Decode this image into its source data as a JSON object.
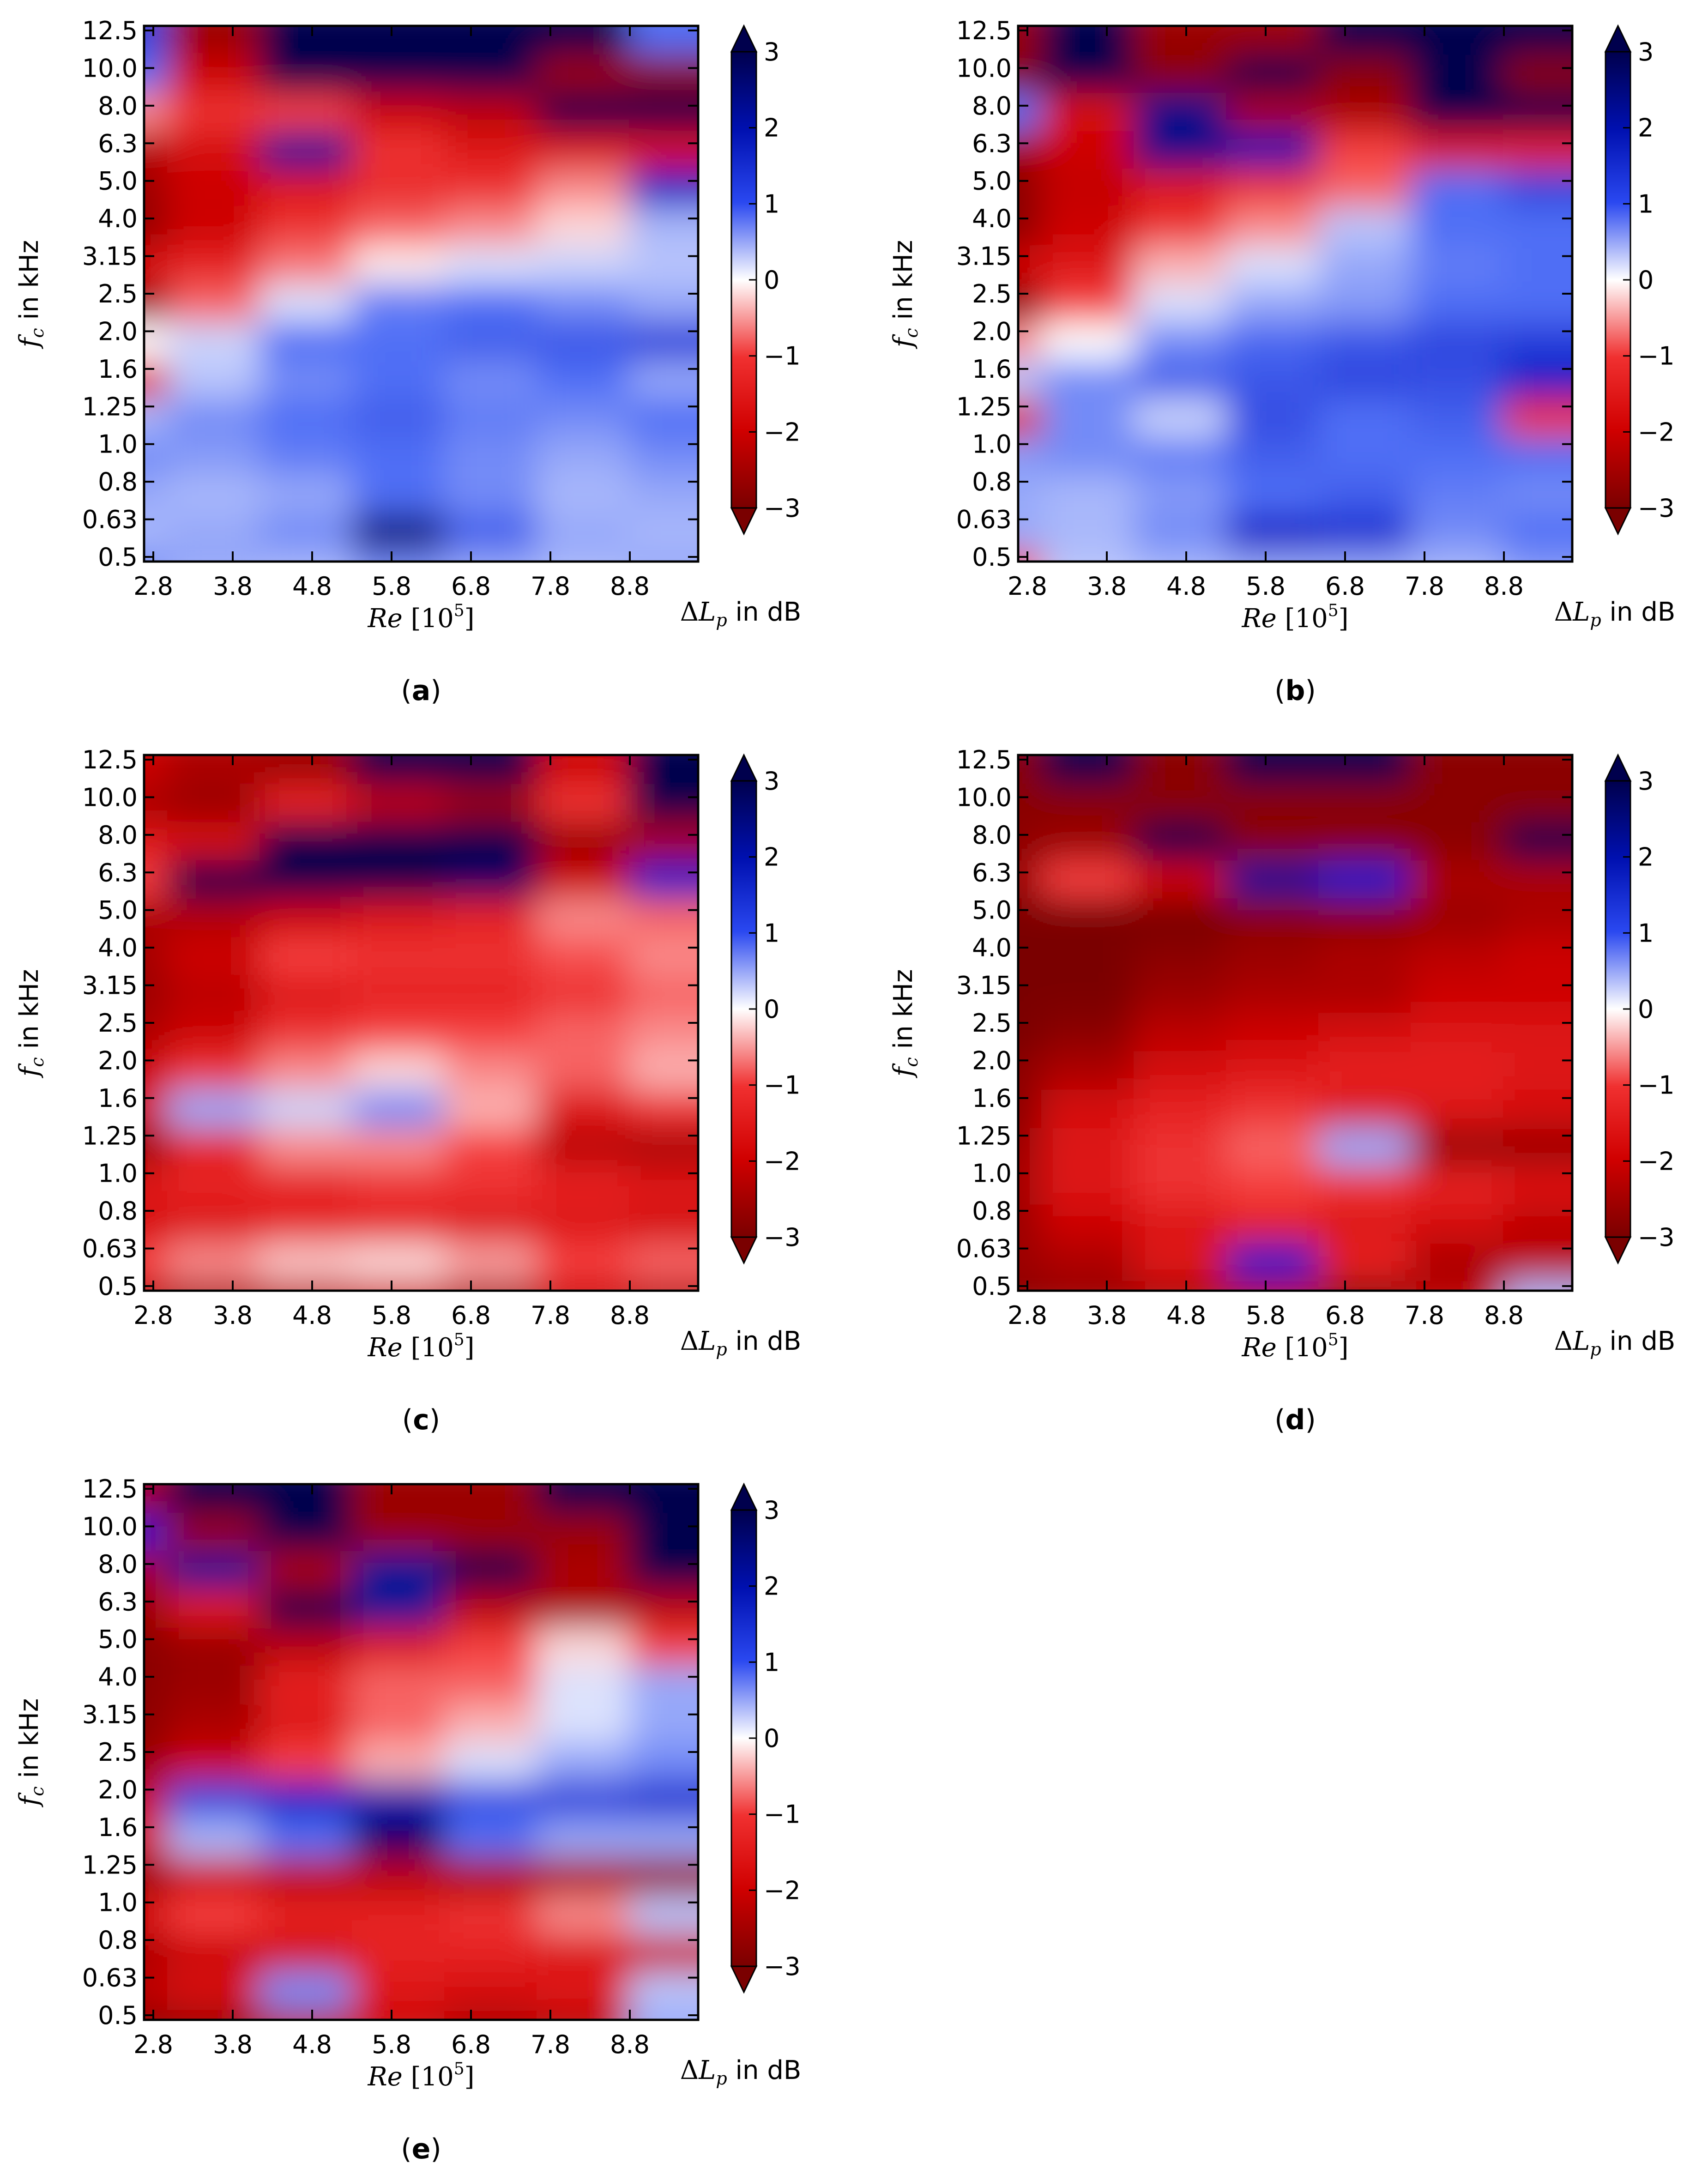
{
  "figure": {
    "colorbar": {
      "ticks": [
        "3",
        "2",
        "1",
        "0",
        "−1",
        "−2",
        "−3"
      ],
      "tick_values": [
        3,
        2,
        1,
        0,
        -1,
        -2,
        -3
      ],
      "label": "ΔL_p in dB",
      "colormap": "seismic_r (blue positive, red negative)",
      "colors": {
        "neg_max": "#7a0000",
        "neg_mid": "#e01010",
        "zero": "#ffffff",
        "pos_mid": "#1030e0",
        "pos_max": "#00004d"
      }
    },
    "xaxis": {
      "label": "Re [10^5]",
      "ticks": [
        "2.8",
        "3.8",
        "4.8",
        "5.8",
        "6.8",
        "7.8",
        "8.8"
      ]
    },
    "yaxis": {
      "label": "f_c in kHz",
      "ticks": [
        "12.5",
        "10.0",
        "8.0",
        "6.3",
        "5.0",
        "4.0",
        "3.15",
        "2.5",
        "2.0",
        "1.6",
        "1.25",
        "1.0",
        "0.8",
        "0.63",
        "0.5"
      ]
    }
  },
  "chart_data": [
    {
      "type": "heatmap",
      "caption": "(a)",
      "x_categories": [
        "2.8",
        "3.8",
        "4.8",
        "5.8",
        "6.8",
        "7.8",
        "8.8"
      ],
      "y_categories_low_to_high": [
        "0.5",
        "0.63",
        "0.8",
        "1.0",
        "1.25",
        "1.6",
        "2.0",
        "2.5",
        "3.15",
        "4.0",
        "5.0",
        "6.3",
        "8.0",
        "10.0",
        "12.5"
      ],
      "zlim": [
        -3,
        3
      ],
      "zlabel": "ΔL_p in dB",
      "values_rows_low_to_high_freq": [
        [
          0.8,
          0.6,
          0.5,
          0.8,
          0.6,
          0.5,
          0.6
        ],
        [
          0.5,
          0.6,
          0.8,
          2.6,
          1.2,
          0.6,
          0.5
        ],
        [
          0.6,
          0.5,
          0.6,
          1.0,
          0.8,
          0.5,
          0.6
        ],
        [
          0.8,
          0.7,
          0.9,
          1.0,
          0.8,
          0.6,
          0.8
        ],
        [
          0.5,
          0.8,
          1.0,
          1.2,
          0.9,
          0.8,
          1.0
        ],
        [
          -1.4,
          0.4,
          0.8,
          1.0,
          0.8,
          1.0,
          0.6
        ],
        [
          0.0,
          0.3,
          1.0,
          1.0,
          1.2,
          1.3,
          1.6
        ],
        [
          -2.6,
          -0.8,
          0.2,
          0.9,
          1.0,
          0.8,
          0.6
        ],
        [
          -1.8,
          -1.4,
          -0.7,
          -0.1,
          0.2,
          0.3,
          0.4
        ],
        [
          -2.7,
          -2.0,
          -1.2,
          -0.8,
          -0.6,
          -0.2,
          0.5
        ],
        [
          -2.6,
          -2.0,
          -1.6,
          -1.3,
          -1.2,
          -0.6,
          2.0
        ],
        [
          -2.3,
          -1.8,
          2.4,
          -1.2,
          -1.6,
          -1.7,
          -1.8
        ],
        [
          -0.6,
          -1.2,
          -1.0,
          -2.0,
          -2.2,
          3.0,
          3.0
        ],
        [
          1.0,
          -2.0,
          3.0,
          3.0,
          3.0,
          -2.6,
          -2.8
        ],
        [
          1.5,
          -2.6,
          3.0,
          3.0,
          3.0,
          3.0,
          1.0
        ]
      ]
    },
    {
      "type": "heatmap",
      "caption": "(b)",
      "x_categories": [
        "2.8",
        "3.8",
        "4.8",
        "5.8",
        "6.8",
        "7.8",
        "8.8"
      ],
      "y_categories_low_to_high": [
        "0.5",
        "0.63",
        "0.8",
        "1.0",
        "1.25",
        "1.6",
        "2.0",
        "2.5",
        "3.15",
        "4.0",
        "5.0",
        "6.3",
        "8.0",
        "10.0",
        "12.5"
      ],
      "zlim": [
        -3,
        3
      ],
      "zlabel": "ΔL_p in dB",
      "values_rows_low_to_high_freq": [
        [
          -1.0,
          0.4,
          0.5,
          0.6,
          0.6,
          0.5,
          0.7
        ],
        [
          0.6,
          0.5,
          0.8,
          2.0,
          1.8,
          0.8,
          1.0
        ],
        [
          0.6,
          0.5,
          0.7,
          1.0,
          1.2,
          0.9,
          0.8
        ],
        [
          0.7,
          0.8,
          0.9,
          1.2,
          1.0,
          1.0,
          1.0
        ],
        [
          -1.5,
          0.8,
          0.3,
          1.4,
          1.0,
          1.2,
          -1.2
        ],
        [
          0.4,
          0.8,
          1.2,
          1.3,
          1.5,
          1.4,
          2.0
        ],
        [
          -0.6,
          0.0,
          0.8,
          1.1,
          1.3,
          1.5,
          1.6
        ],
        [
          -2.8,
          -1.0,
          0.2,
          0.6,
          0.7,
          1.0,
          1.0
        ],
        [
          -2.0,
          -1.6,
          -0.4,
          0.2,
          0.6,
          0.9,
          1.0
        ],
        [
          -2.8,
          -2.0,
          -1.2,
          -0.6,
          0.4,
          1.0,
          1.0
        ],
        [
          -2.8,
          -2.1,
          -1.6,
          -1.2,
          -0.8,
          1.0,
          1.5
        ],
        [
          -2.5,
          -2.0,
          2.5,
          2.2,
          -1.0,
          -1.6,
          -1.5
        ],
        [
          1.0,
          -1.8,
          2.5,
          -2.4,
          -2.4,
          3.0,
          3.0
        ],
        [
          -2.8,
          3.0,
          -2.8,
          3.0,
          -2.8,
          3.0,
          -2.8
        ],
        [
          -2.6,
          3.0,
          -2.6,
          -2.6,
          3.0,
          3.0,
          3.0
        ]
      ]
    },
    {
      "type": "heatmap",
      "caption": "(c)",
      "x_categories": [
        "2.8",
        "3.8",
        "4.8",
        "5.8",
        "6.8",
        "7.8",
        "8.8"
      ],
      "y_categories_low_to_high": [
        "0.5",
        "0.63",
        "0.8",
        "1.0",
        "1.25",
        "1.6",
        "2.0",
        "2.5",
        "3.15",
        "4.0",
        "5.0",
        "6.3",
        "8.0",
        "10.0",
        "12.5"
      ],
      "zlim": [
        -3,
        3
      ],
      "zlabel": "ΔL_p in dB",
      "values_rows_low_to_high_freq": [
        [
          -2.2,
          -2.4,
          -2.2,
          -2.0,
          -2.4,
          -2.0,
          -2.2
        ],
        [
          -1.0,
          -0.6,
          -0.3,
          -0.2,
          -0.5,
          -1.0,
          -0.8
        ],
        [
          -1.8,
          -1.6,
          -1.4,
          -1.4,
          -1.6,
          -1.6,
          -1.8
        ],
        [
          -1.6,
          -1.4,
          -1.4,
          -1.2,
          -1.2,
          -1.4,
          -1.6
        ],
        [
          -2.6,
          -1.4,
          -0.6,
          -0.6,
          -1.0,
          -2.2,
          -2.4
        ],
        [
          -1.8,
          0.6,
          0.3,
          0.8,
          -0.4,
          -1.6,
          -1.2
        ],
        [
          -2.0,
          -1.2,
          -0.6,
          -0.2,
          -0.6,
          -0.8,
          -0.4
        ],
        [
          -2.4,
          -2.0,
          -1.2,
          -1.0,
          -1.0,
          -0.8,
          -0.6
        ],
        [
          -2.6,
          -2.2,
          -1.6,
          -1.4,
          -1.4,
          -1.2,
          -0.8
        ],
        [
          -2.5,
          -2.0,
          -1.0,
          -1.2,
          -1.2,
          -0.9,
          -0.6
        ],
        [
          -2.4,
          -2.3,
          -2.0,
          -1.6,
          -1.4,
          -0.6,
          -0.8
        ],
        [
          -1.0,
          3.0,
          3.0,
          3.0,
          2.8,
          -2.0,
          2.0
        ],
        [
          -1.6,
          -1.8,
          3.0,
          3.0,
          3.0,
          -2.6,
          -2.4
        ],
        [
          -2.4,
          -2.6,
          -1.4,
          -2.2,
          -2.6,
          -1.2,
          3.0
        ],
        [
          -2.0,
          -2.4,
          -2.6,
          3.0,
          3.0,
          -2.0,
          3.0
        ]
      ]
    },
    {
      "type": "heatmap",
      "caption": "(d)",
      "x_categories": [
        "2.8",
        "3.8",
        "4.8",
        "5.8",
        "6.8",
        "7.8",
        "8.8"
      ],
      "y_categories_low_to_high": [
        "0.5",
        "0.63",
        "0.8",
        "1.0",
        "1.25",
        "1.6",
        "2.0",
        "2.5",
        "3.15",
        "4.0",
        "5.0",
        "6.3",
        "8.0",
        "10.0",
        "12.5"
      ],
      "zlim": [
        -3,
        3
      ],
      "zlabel": "ΔL_p in dB",
      "values_rows_low_to_high_freq": [
        [
          -2.8,
          -2.6,
          -2.4,
          -2.2,
          -2.8,
          -2.2,
          0.5
        ],
        [
          -2.6,
          -2.4,
          -1.6,
          2.0,
          -1.4,
          -2.4,
          -2.2
        ],
        [
          -2.6,
          -2.0,
          -1.6,
          -1.4,
          -1.6,
          -1.8,
          -2.2
        ],
        [
          -2.5,
          -1.6,
          -1.2,
          -1.0,
          -1.2,
          -1.4,
          -1.6
        ],
        [
          -2.6,
          -1.6,
          -1.2,
          -0.8,
          0.6,
          -2.6,
          -2.6
        ],
        [
          -2.8,
          -1.8,
          -1.4,
          -1.2,
          -1.6,
          -1.6,
          -1.8
        ],
        [
          -2.8,
          -2.4,
          -1.8,
          -1.6,
          -1.4,
          -1.4,
          -1.6
        ],
        [
          -3.0,
          -2.8,
          -2.2,
          -2.0,
          -1.8,
          -1.6,
          -1.6
        ],
        [
          -3.0,
          -3.0,
          -2.6,
          -2.4,
          -2.4,
          -2.0,
          -2.0
        ],
        [
          -3.0,
          -3.0,
          -2.8,
          -2.6,
          -2.4,
          -2.2,
          -2.0
        ],
        [
          -3.0,
          -3.0,
          -3.0,
          -2.8,
          -2.8,
          -2.6,
          -2.4
        ],
        [
          -2.6,
          -1.0,
          -2.0,
          2.4,
          2.0,
          -2.4,
          -2.4
        ],
        [
          -2.8,
          -2.6,
          3.0,
          -2.8,
          -2.8,
          -2.8,
          3.0
        ],
        [
          -2.8,
          -2.8,
          -2.8,
          -2.8,
          -2.8,
          -2.8,
          -2.8
        ],
        [
          -2.8,
          3.0,
          -2.8,
          3.0,
          3.0,
          -2.8,
          -2.8
        ]
      ]
    },
    {
      "type": "heatmap",
      "caption": "(e)",
      "x_categories": [
        "2.8",
        "3.8",
        "4.8",
        "5.8",
        "6.8",
        "7.8",
        "8.8"
      ],
      "y_categories_low_to_high": [
        "0.5",
        "0.63",
        "0.8",
        "1.0",
        "1.25",
        "1.6",
        "2.0",
        "2.5",
        "3.15",
        "4.0",
        "5.0",
        "6.3",
        "8.0",
        "10.0",
        "12.5"
      ],
      "zlim": [
        -3,
        3
      ],
      "zlabel": "ΔL_p in dB",
      "values_rows_low_to_high_freq": [
        [
          -2.8,
          -2.6,
          -2.2,
          -2.0,
          -2.4,
          -2.2,
          0.6
        ],
        [
          -2.2,
          -1.8,
          0.8,
          -1.6,
          -1.8,
          -1.6,
          0.4
        ],
        [
          -2.4,
          -2.0,
          -1.8,
          -1.4,
          -1.4,
          -1.6,
          -2.0
        ],
        [
          -1.8,
          -1.0,
          -1.4,
          -1.4,
          -1.2,
          -0.6,
          0.4
        ],
        [
          -2.6,
          -2.0,
          -2.2,
          -2.2,
          -2.4,
          -2.4,
          -2.6
        ],
        [
          -1.8,
          0.5,
          1.0,
          2.8,
          1.0,
          0.6,
          0.6
        ],
        [
          -2.0,
          1.5,
          2.0,
          2.2,
          1.4,
          1.6,
          1.8
        ],
        [
          -2.6,
          -2.0,
          -1.0,
          -0.4,
          0.2,
          0.6,
          0.8
        ],
        [
          -2.8,
          -2.4,
          -1.6,
          -0.8,
          -0.4,
          0.2,
          0.6
        ],
        [
          -2.8,
          -2.6,
          -1.4,
          -0.8,
          -0.8,
          0.2,
          0.6
        ],
        [
          -2.8,
          -2.6,
          -2.2,
          -1.6,
          -1.0,
          -0.2,
          -1.0
        ],
        [
          -2.6,
          -1.6,
          3.0,
          2.4,
          -2.2,
          -2.4,
          -2.2
        ],
        [
          -2.4,
          2.4,
          -2.4,
          2.4,
          3.0,
          -2.4,
          3.0
        ],
        [
          2.0,
          -2.6,
          3.0,
          -2.6,
          -2.6,
          -2.6,
          3.0
        ],
        [
          -2.4,
          3.0,
          3.0,
          -2.6,
          -2.6,
          3.0,
          3.0
        ]
      ]
    }
  ]
}
